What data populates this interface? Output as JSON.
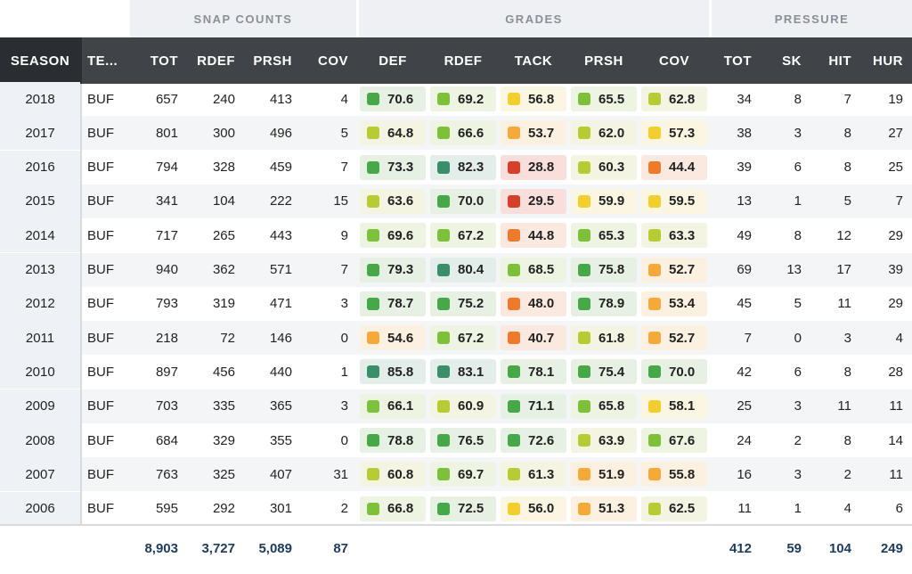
{
  "groups": {
    "snap": "SNAP COUNTS",
    "grades": "GRADES",
    "pressure": "PRESSURE"
  },
  "columns": {
    "season": "SEASON",
    "team": "TE...",
    "snap_tot": "TOT",
    "snap_rdef": "RDEF",
    "snap_prsh": "PRSH",
    "snap_cov": "COV",
    "g_def": "DEF",
    "g_rdef": "RDEF",
    "g_tack": "TACK",
    "g_prsh": "PRSH",
    "g_cov": "COV",
    "p_tot": "TOT",
    "p_sk": "SK",
    "p_hit": "HIT",
    "p_hur": "HUR"
  },
  "rows": [
    {
      "season": "2018",
      "team": "BUF",
      "tot": "657",
      "rdef": "240",
      "prsh": "413",
      "cov": "4",
      "g_def": "70.6",
      "g_rdef": "69.2",
      "g_tack": "56.8",
      "g_prsh": "65.5",
      "g_cov": "62.8",
      "p_tot": "34",
      "p_sk": "8",
      "p_hit": "7",
      "p_hur": "19"
    },
    {
      "season": "2017",
      "team": "BUF",
      "tot": "801",
      "rdef": "300",
      "prsh": "496",
      "cov": "5",
      "g_def": "64.8",
      "g_rdef": "66.6",
      "g_tack": "53.7",
      "g_prsh": "62.0",
      "g_cov": "57.3",
      "p_tot": "38",
      "p_sk": "3",
      "p_hit": "8",
      "p_hur": "27"
    },
    {
      "season": "2016",
      "team": "BUF",
      "tot": "794",
      "rdef": "328",
      "prsh": "459",
      "cov": "7",
      "g_def": "73.3",
      "g_rdef": "82.3",
      "g_tack": "28.8",
      "g_prsh": "60.3",
      "g_cov": "44.4",
      "p_tot": "39",
      "p_sk": "6",
      "p_hit": "8",
      "p_hur": "25"
    },
    {
      "season": "2015",
      "team": "BUF",
      "tot": "341",
      "rdef": "104",
      "prsh": "222",
      "cov": "15",
      "g_def": "63.6",
      "g_rdef": "70.0",
      "g_tack": "29.5",
      "g_prsh": "59.9",
      "g_cov": "59.5",
      "p_tot": "13",
      "p_sk": "1",
      "p_hit": "5",
      "p_hur": "7"
    },
    {
      "season": "2014",
      "team": "BUF",
      "tot": "717",
      "rdef": "265",
      "prsh": "443",
      "cov": "9",
      "g_def": "69.6",
      "g_rdef": "67.2",
      "g_tack": "44.8",
      "g_prsh": "65.3",
      "g_cov": "63.3",
      "p_tot": "49",
      "p_sk": "8",
      "p_hit": "12",
      "p_hur": "29"
    },
    {
      "season": "2013",
      "team": "BUF",
      "tot": "940",
      "rdef": "362",
      "prsh": "571",
      "cov": "7",
      "g_def": "79.3",
      "g_rdef": "80.4",
      "g_tack": "68.5",
      "g_prsh": "75.8",
      "g_cov": "52.7",
      "p_tot": "69",
      "p_sk": "13",
      "p_hit": "17",
      "p_hur": "39"
    },
    {
      "season": "2012",
      "team": "BUF",
      "tot": "793",
      "rdef": "319",
      "prsh": "471",
      "cov": "3",
      "g_def": "78.7",
      "g_rdef": "75.2",
      "g_tack": "48.0",
      "g_prsh": "78.9",
      "g_cov": "53.4",
      "p_tot": "45",
      "p_sk": "5",
      "p_hit": "11",
      "p_hur": "29"
    },
    {
      "season": "2011",
      "team": "BUF",
      "tot": "218",
      "rdef": "72",
      "prsh": "146",
      "cov": "0",
      "g_def": "54.6",
      "g_rdef": "67.2",
      "g_tack": "40.7",
      "g_prsh": "61.8",
      "g_cov": "52.7",
      "p_tot": "7",
      "p_sk": "0",
      "p_hit": "3",
      "p_hur": "4"
    },
    {
      "season": "2010",
      "team": "BUF",
      "tot": "897",
      "rdef": "456",
      "prsh": "440",
      "cov": "1",
      "g_def": "85.8",
      "g_rdef": "83.1",
      "g_tack": "78.1",
      "g_prsh": "75.4",
      "g_cov": "70.0",
      "p_tot": "42",
      "p_sk": "6",
      "p_hit": "8",
      "p_hur": "28"
    },
    {
      "season": "2009",
      "team": "BUF",
      "tot": "703",
      "rdef": "335",
      "prsh": "365",
      "cov": "3",
      "g_def": "66.1",
      "g_rdef": "60.9",
      "g_tack": "71.1",
      "g_prsh": "65.8",
      "g_cov": "58.1",
      "p_tot": "25",
      "p_sk": "3",
      "p_hit": "11",
      "p_hur": "11"
    },
    {
      "season": "2008",
      "team": "BUF",
      "tot": "684",
      "rdef": "329",
      "prsh": "355",
      "cov": "0",
      "g_def": "78.8",
      "g_rdef": "76.5",
      "g_tack": "72.6",
      "g_prsh": "63.9",
      "g_cov": "67.6",
      "p_tot": "24",
      "p_sk": "2",
      "p_hit": "8",
      "p_hur": "14"
    },
    {
      "season": "2007",
      "team": "BUF",
      "tot": "763",
      "rdef": "325",
      "prsh": "407",
      "cov": "31",
      "g_def": "60.8",
      "g_rdef": "69.7",
      "g_tack": "61.3",
      "g_prsh": "51.9",
      "g_cov": "55.8",
      "p_tot": "16",
      "p_sk": "3",
      "p_hit": "2",
      "p_hur": "11"
    },
    {
      "season": "2006",
      "team": "BUF",
      "tot": "595",
      "rdef": "292",
      "prsh": "301",
      "cov": "2",
      "g_def": "66.8",
      "g_rdef": "72.5",
      "g_tack": "56.0",
      "g_prsh": "51.3",
      "g_cov": "62.5",
      "p_tot": "11",
      "p_sk": "1",
      "p_hit": "4",
      "p_hur": "6"
    }
  ],
  "totals": {
    "tot": "8,903",
    "rdef": "3,727",
    "prsh": "5,089",
    "cov": "87",
    "p_tot": "412",
    "p_sk": "59",
    "p_hit": "104",
    "p_hur": "249"
  },
  "grade_colors": {
    "excellent": "#3a8f6a",
    "great": "#46a848",
    "good": "#7dc13a",
    "above_avg": "#b7cc34",
    "avg": "#f2cf2e",
    "below_avg": "#f5a93a",
    "poor": "#ee7a2c",
    "bad": "#d6402a"
  }
}
